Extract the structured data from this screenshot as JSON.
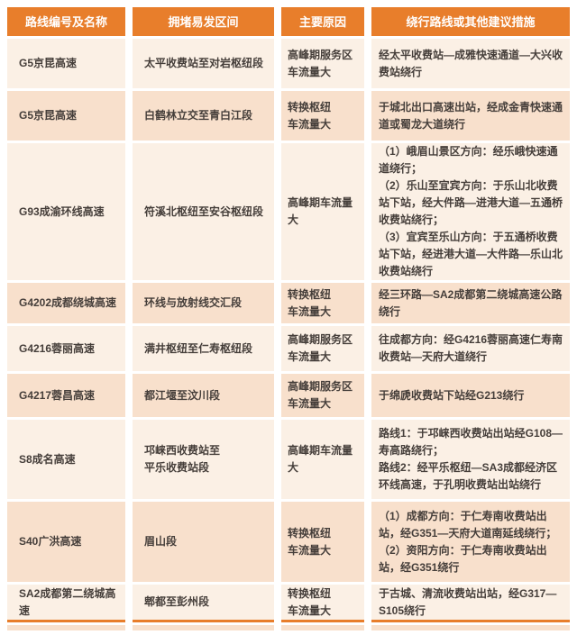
{
  "colors": {
    "orange": "#e87e2b",
    "row_light": "#fbf0e5",
    "row_dark": "#f8e0cc",
    "text": "#453e3a",
    "header_text": "#ffffff",
    "page_background": "#ffffff"
  },
  "table": {
    "headers": [
      "路线编号及名称",
      "拥堵易发区间",
      "主要原因",
      "绕行路线或其他建议措施"
    ],
    "rows": [
      {
        "route": "G5京昆高速",
        "section": "太平收费站至对岩枢纽段",
        "reason": "高峰期服务区\n车流量大",
        "detour": "经太平收费站—成雅快速通道—大兴收费站绕行"
      },
      {
        "route": "G5京昆高速",
        "section": "白鹤林立交至青白江段",
        "reason": "转换枢纽\n车流量大",
        "detour": "于城北出口高速出站，经成金青快速通道或蜀龙大道绕行"
      },
      {
        "route": "G93成渝环线高速",
        "section": "符溪北枢纽至安谷枢纽段",
        "reason": "高峰期车流量大",
        "detour": "（1）峨眉山景区方向：经乐峨快速通道绕行；\n（2）乐山至宜宾方向：于乐山北收费站下站，经大件路—进港大道—五通桥收费站绕行；\n（3）宜宾至乐山方向：于五通桥收费站下站，经进港大道—大件路—乐山北收费站绕行"
      },
      {
        "route": "G4202成都绕城高速",
        "section": "环线与放射线交汇段",
        "reason": "转换枢纽\n车流量大",
        "detour": "经三环路—SA2成都第二绕城高速公路绕行"
      },
      {
        "route": "G4216蓉丽高速",
        "section": "满井枢纽至仁寿枢纽段",
        "reason": "高峰期服务区\n车流量大",
        "detour": "往成都方向：经G4216蓉丽高速仁寿南收费站—天府大道绕行"
      },
      {
        "route": "G4217蓉昌高速",
        "section": "都江堰至汶川段",
        "reason": "高峰期服务区\n车流量大",
        "detour": "于绵虒收费站下站经G213绕行"
      },
      {
        "route": "S8成名高速",
        "section": "邛崃西收费站至\n平乐收费站段",
        "reason": "高峰期车流量大",
        "detour": "路线1：于邛崃西收费站出站经G108—寿高路绕行；\n路线2：经平乐枢纽—SA3成都经济区环线高速，于孔明收费站出站绕行"
      },
      {
        "route": "S40广洪高速",
        "section": "眉山段",
        "reason": "转换枢纽\n车流量大",
        "detour": "（1）成都方向：于仁寿南收费站出站，经G351—天府大道南延线绕行；\n（2）资阳方向：于仁寿南收费站出站，经G351绕行"
      },
      {
        "route": "SA2成都第二绕城高速",
        "section": "郫都至彭州段",
        "reason": "转换枢纽\n车流量大",
        "detour": "于古城、清流收费站出站，经G317—S105绕行"
      }
    ]
  }
}
